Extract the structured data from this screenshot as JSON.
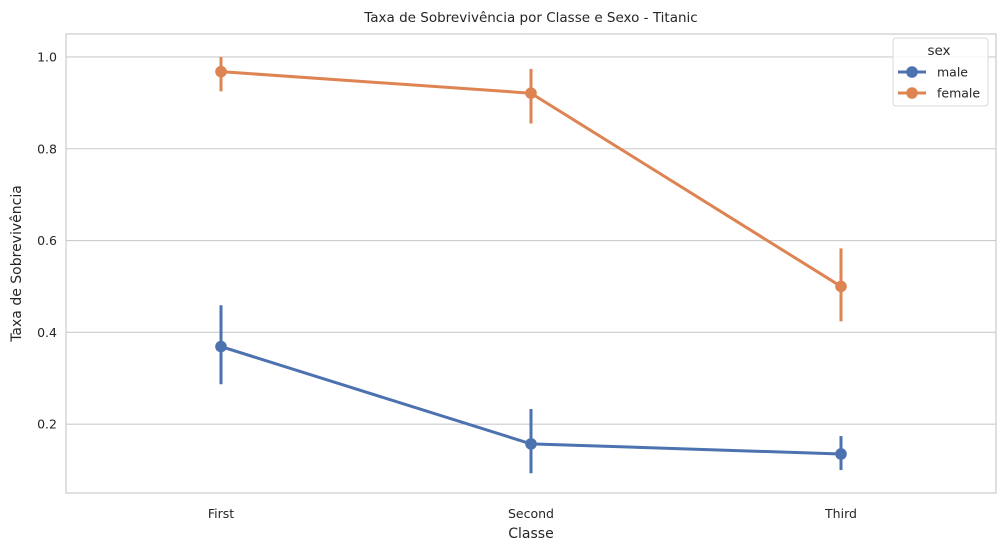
{
  "chart_data": {
    "type": "line",
    "title": "Taxa de Sobrevivência por Classe e Sexo - Titanic",
    "xlabel": "Classe",
    "ylabel": "Taxa de Sobrevivência",
    "categories": [
      "First",
      "Second",
      "Third"
    ],
    "ylim": [
      0.05,
      1.05
    ],
    "yticks": [
      0.2,
      0.4,
      0.6,
      0.8,
      1.0
    ],
    "ytick_labels": [
      "0.2",
      "0.4",
      "0.6",
      "0.8",
      "1.0"
    ],
    "grid": "horizontal",
    "legend": {
      "title": "sex",
      "placement": "top-right"
    },
    "series": [
      {
        "name": "male",
        "color": "#4c72b0",
        "values": [
          0.369,
          0.157,
          0.135
        ],
        "ci_low": [
          0.287,
          0.093,
          0.1
        ],
        "ci_high": [
          0.459,
          0.233,
          0.174
        ]
      },
      {
        "name": "female",
        "color": "#dd8452",
        "values": [
          0.968,
          0.921,
          0.5
        ],
        "ci_low": [
          0.925,
          0.855,
          0.424
        ],
        "ci_high": [
          1.0,
          0.974,
          0.583
        ]
      }
    ]
  }
}
